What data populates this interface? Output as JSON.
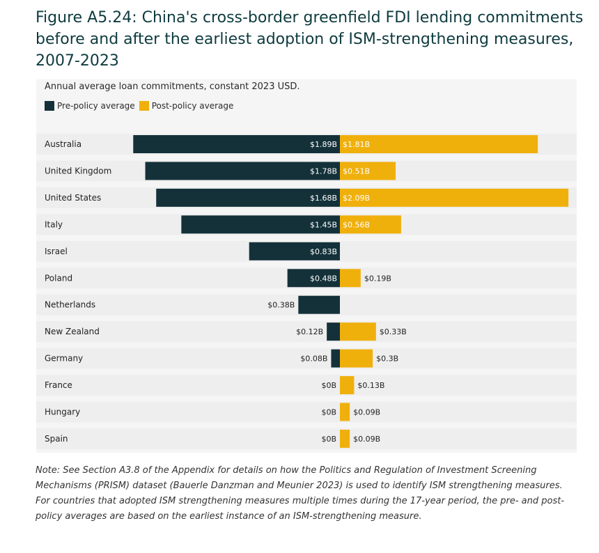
{
  "title": "Figure A5.24: China's cross-border greenfield FDI lending commitments before and after the earliest adoption of ISM-strengthening measures, 2007-2023",
  "note": "Note: See Section A3.8 of the Appendix for details on how the Politics and Regulation of Investment Screening Mechanisms (PRISM) dataset (Bauerle Danzman and Meunier 2023) is used to identify ISM strengthening measures. For countries that adopted ISM strengthening measures multiple times during the 17-year period, the pre- and post-policy averages are based on the earliest instance of an ISM-strengthening measure.",
  "colors": {
    "pre": "#14313a",
    "post": "#f0b00c",
    "panel": "#f5f5f5",
    "band": "#eeeeee"
  },
  "chart_data": {
    "type": "bar",
    "subtitle": "Annual average loan commitments, constant 2023 USD.",
    "categories": [
      "Australia",
      "United Kingdom",
      "United States",
      "Italy",
      "Israel",
      "Poland",
      "Netherlands",
      "New Zealand",
      "Germany",
      "France",
      "Hungary",
      "Spain"
    ],
    "series": [
      {
        "name": "Pre-policy average",
        "values": [
          1.89,
          1.78,
          1.68,
          1.45,
          0.83,
          0.48,
          0.38,
          0.12,
          0.08,
          0,
          null,
          null
        ],
        "labels": [
          "$1.89B",
          "$1.78B",
          "$1.68B",
          "$1.45B",
          "$0.83B",
          "$0.48B",
          "$0.38B",
          "$0.12B",
          "$0.08B",
          "$0B",
          "$0B",
          "$0B"
        ]
      },
      {
        "name": "Post-policy average",
        "values": [
          1.81,
          0.51,
          2.09,
          0.56,
          null,
          0.19,
          null,
          0.33,
          0.3,
          0.13,
          0.09,
          0.09
        ],
        "labels": [
          "$1.81B",
          "$0.51B",
          "$2.09B",
          "$0.56B",
          null,
          "$0.19B",
          null,
          "$0.33B",
          "$0.3B",
          "$0.13B",
          "$0.09B",
          "$0.09B"
        ]
      }
    ],
    "layout": "diverging from center; pre-policy extends left, post-policy extends right",
    "legend": "top-left"
  }
}
